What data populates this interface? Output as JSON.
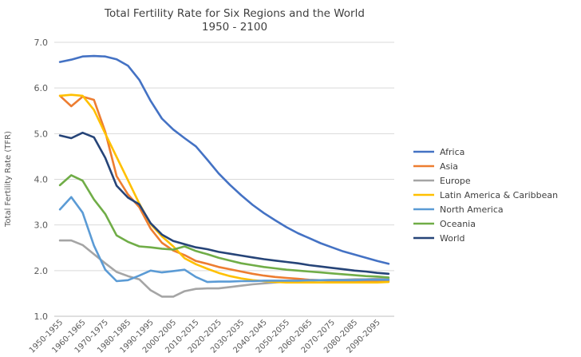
{
  "chart_data": {
    "type": "line",
    "title": "Total Fertility Rate for Six Regions and the World",
    "subtitle": "1950 - 2100",
    "ylabel": "Total Fertility Rate (TFR)",
    "xlabel": "",
    "ylim": [
      1.0,
      7.0
    ],
    "yticks": [
      "1.0",
      "2.0",
      "3.0",
      "4.0",
      "5.0",
      "6.0",
      "7.0"
    ],
    "ytick_values": [
      1,
      2,
      3,
      4,
      5,
      6,
      7
    ],
    "grid": true,
    "legend_position": "right",
    "categories": [
      "1950-1955",
      "1955-1960",
      "1960-1965",
      "1965-1970",
      "1970-1975",
      "1975-1980",
      "1980-1985",
      "1985-1990",
      "1990-1995",
      "1995-2000",
      "2000-2005",
      "2005-2010",
      "2010-2015",
      "2015-2020",
      "2020-2025",
      "2025-2030",
      "2030-2035",
      "2035-2040",
      "2040-2045",
      "2045-2050",
      "2050-2055",
      "2055-2060",
      "2060-2065",
      "2065-2070",
      "2070-2075",
      "2075-2080",
      "2080-2085",
      "2085-2090",
      "2090-2095",
      "2095-2100"
    ],
    "x_tick_labels": [
      "1950-1955",
      "1960-1965",
      "1970-1975",
      "1980-1985",
      "1990-1995",
      "2000-2005",
      "2010-2015",
      "2020-2025",
      "2030-2035",
      "2040-2045",
      "2050-2055",
      "2060-2065",
      "2070-2075",
      "2080-2085",
      "2090-2095"
    ],
    "series": [
      {
        "name": "Africa",
        "color": "#4472C4",
        "values": [
          6.57,
          6.62,
          6.69,
          6.7,
          6.69,
          6.63,
          6.49,
          6.18,
          5.72,
          5.33,
          5.09,
          4.9,
          4.72,
          4.43,
          4.13,
          3.88,
          3.65,
          3.44,
          3.26,
          3.1,
          2.95,
          2.82,
          2.71,
          2.6,
          2.51,
          2.42,
          2.35,
          2.28,
          2.21,
          2.15
        ]
      },
      {
        "name": "Asia",
        "color": "#ED7D31",
        "values": [
          5.83,
          5.6,
          5.81,
          5.74,
          5.04,
          4.07,
          3.67,
          3.39,
          2.92,
          2.61,
          2.44,
          2.34,
          2.21,
          2.15,
          2.08,
          2.03,
          1.98,
          1.93,
          1.89,
          1.86,
          1.84,
          1.82,
          1.8,
          1.79,
          1.78,
          1.78,
          1.77,
          1.77,
          1.77,
          1.77
        ]
      },
      {
        "name": "Europe",
        "color": "#A5A5A5",
        "values": [
          2.66,
          2.66,
          2.56,
          2.36,
          2.16,
          1.97,
          1.88,
          1.81,
          1.57,
          1.43,
          1.43,
          1.55,
          1.6,
          1.61,
          1.61,
          1.64,
          1.67,
          1.7,
          1.72,
          1.74,
          1.76,
          1.77,
          1.78,
          1.79,
          1.8,
          1.8,
          1.81,
          1.81,
          1.82,
          1.82
        ]
      },
      {
        "name": "Latin America & Caribbean",
        "color": "#FFC000",
        "values": [
          5.83,
          5.85,
          5.83,
          5.52,
          5.0,
          4.49,
          3.98,
          3.47,
          3.02,
          2.75,
          2.53,
          2.27,
          2.14,
          2.04,
          1.95,
          1.88,
          1.83,
          1.79,
          1.77,
          1.75,
          1.74,
          1.74,
          1.74,
          1.74,
          1.74,
          1.74,
          1.74,
          1.74,
          1.74,
          1.75
        ]
      },
      {
        "name": "North America",
        "color": "#5B9BD5",
        "values": [
          3.34,
          3.61,
          3.27,
          2.55,
          2.02,
          1.77,
          1.79,
          1.89,
          2.0,
          1.96,
          1.99,
          2.02,
          1.86,
          1.75,
          1.76,
          1.76,
          1.77,
          1.77,
          1.78,
          1.78,
          1.78,
          1.78,
          1.79,
          1.79,
          1.79,
          1.79,
          1.79,
          1.8,
          1.8,
          1.8
        ]
      },
      {
        "name": "Oceania",
        "color": "#70AD47",
        "values": [
          3.87,
          4.09,
          3.97,
          3.56,
          3.24,
          2.77,
          2.63,
          2.53,
          2.51,
          2.48,
          2.46,
          2.53,
          2.43,
          2.36,
          2.28,
          2.22,
          2.16,
          2.12,
          2.08,
          2.05,
          2.02,
          2.0,
          1.98,
          1.96,
          1.94,
          1.92,
          1.9,
          1.88,
          1.87,
          1.85
        ]
      },
      {
        "name": "World",
        "color": "#264478",
        "values": [
          4.96,
          4.9,
          5.02,
          4.92,
          4.47,
          3.86,
          3.6,
          3.45,
          3.04,
          2.79,
          2.65,
          2.58,
          2.51,
          2.47,
          2.41,
          2.37,
          2.33,
          2.29,
          2.25,
          2.22,
          2.19,
          2.16,
          2.12,
          2.09,
          2.06,
          2.03,
          2.0,
          1.98,
          1.95,
          1.93
        ]
      }
    ]
  }
}
